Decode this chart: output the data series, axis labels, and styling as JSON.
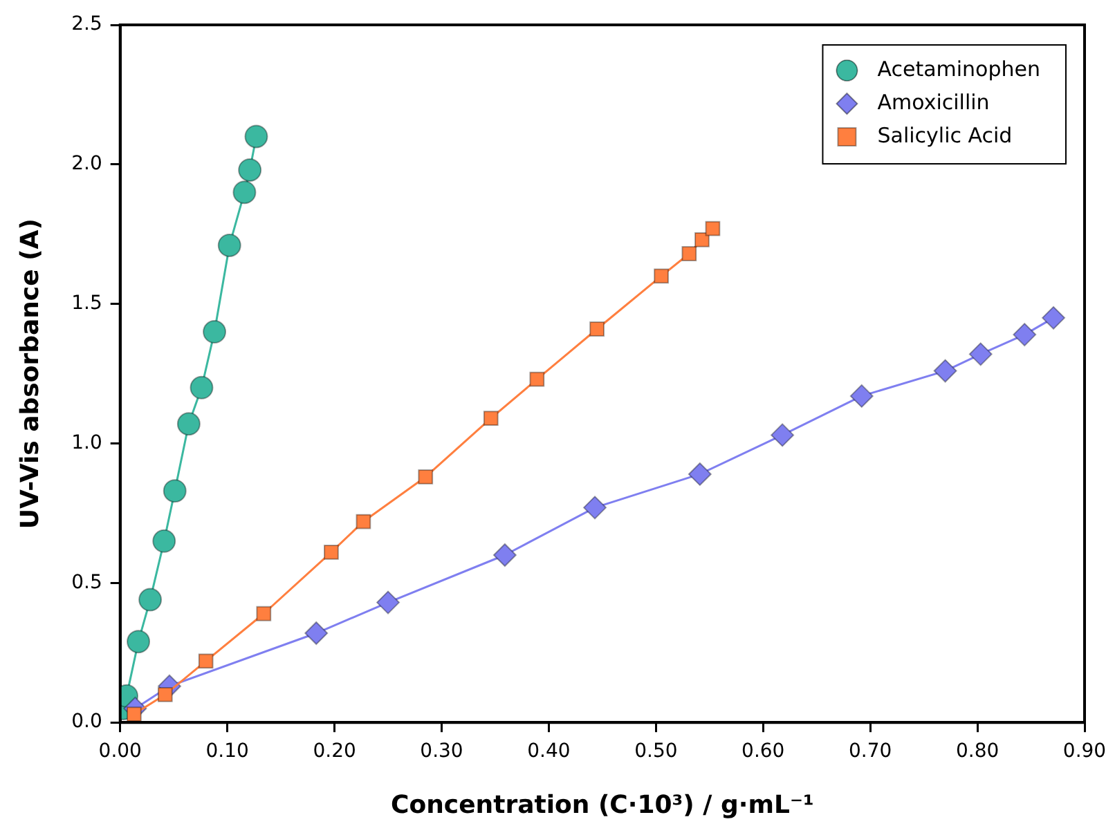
{
  "chart_data": {
    "type": "line",
    "xlabel": "Concentration (C·10³) / g·mL⁻¹",
    "ylabel": "UV-Vis absorbance (A)",
    "xlim": [
      0,
      0.9
    ],
    "xticks": [
      {
        "value": 0,
        "label": "0.00"
      },
      {
        "value": 0.1,
        "label": "0.10"
      },
      {
        "value": 0.2,
        "label": "0.20"
      },
      {
        "value": 0.3,
        "label": "0.30"
      },
      {
        "value": 0.4,
        "label": "0.40"
      },
      {
        "value": 0.5,
        "label": "0.50"
      },
      {
        "value": 0.6,
        "label": "0.60"
      },
      {
        "value": 0.7,
        "label": "0.70"
      },
      {
        "value": 0.8,
        "label": "0.80"
      },
      {
        "value": 0.9,
        "label": "0.90"
      }
    ],
    "ylim": [
      0,
      2.5
    ],
    "yticks": [
      {
        "value": 0,
        "label": "0.0"
      },
      {
        "value": 0.5,
        "label": "0.5"
      },
      {
        "value": 1,
        "label": "1.0"
      },
      {
        "value": 1.5,
        "label": "1.5"
      },
      {
        "value": 2,
        "label": "2.0"
      },
      {
        "value": 2.5,
        "label": "2.5"
      }
    ],
    "grid": false,
    "legend": "top right",
    "line_style": "solid",
    "series": [
      {
        "name": "Acetaminophen",
        "color": "#3bb8a0",
        "marker": "circle",
        "x": [
          0.003,
          0.006,
          0.017,
          0.028,
          0.041,
          0.051,
          0.064,
          0.076,
          0.088,
          0.102,
          0.116,
          0.121,
          0.127
        ],
        "values": [
          0.05,
          0.095,
          0.29,
          0.44,
          0.65,
          0.83,
          1.07,
          1.2,
          1.4,
          1.71,
          1.9,
          1.98,
          2.1
        ]
      },
      {
        "name": "Amoxicillin",
        "color": "#7f7ff0",
        "marker": "diamond",
        "x": [
          0.014,
          0.046,
          0.183,
          0.25,
          0.359,
          0.443,
          0.541,
          0.618,
          0.692,
          0.77,
          0.803,
          0.844,
          0.871
        ],
        "values": [
          0.05,
          0.13,
          0.32,
          0.43,
          0.6,
          0.77,
          0.89,
          1.03,
          1.17,
          1.26,
          1.32,
          1.39,
          1.45
        ]
      },
      {
        "name": "Salicylic Acid",
        "color": "#ff7f3f",
        "marker": "square",
        "x": [
          0.013,
          0.042,
          0.08,
          0.134,
          0.197,
          0.227,
          0.285,
          0.346,
          0.389,
          0.445,
          0.505,
          0.531,
          0.543,
          0.553
        ],
        "values": [
          0.03,
          0.1,
          0.22,
          0.39,
          0.61,
          0.72,
          0.88,
          1.09,
          1.23,
          1.41,
          1.6,
          1.68,
          1.73,
          1.77
        ]
      }
    ]
  }
}
